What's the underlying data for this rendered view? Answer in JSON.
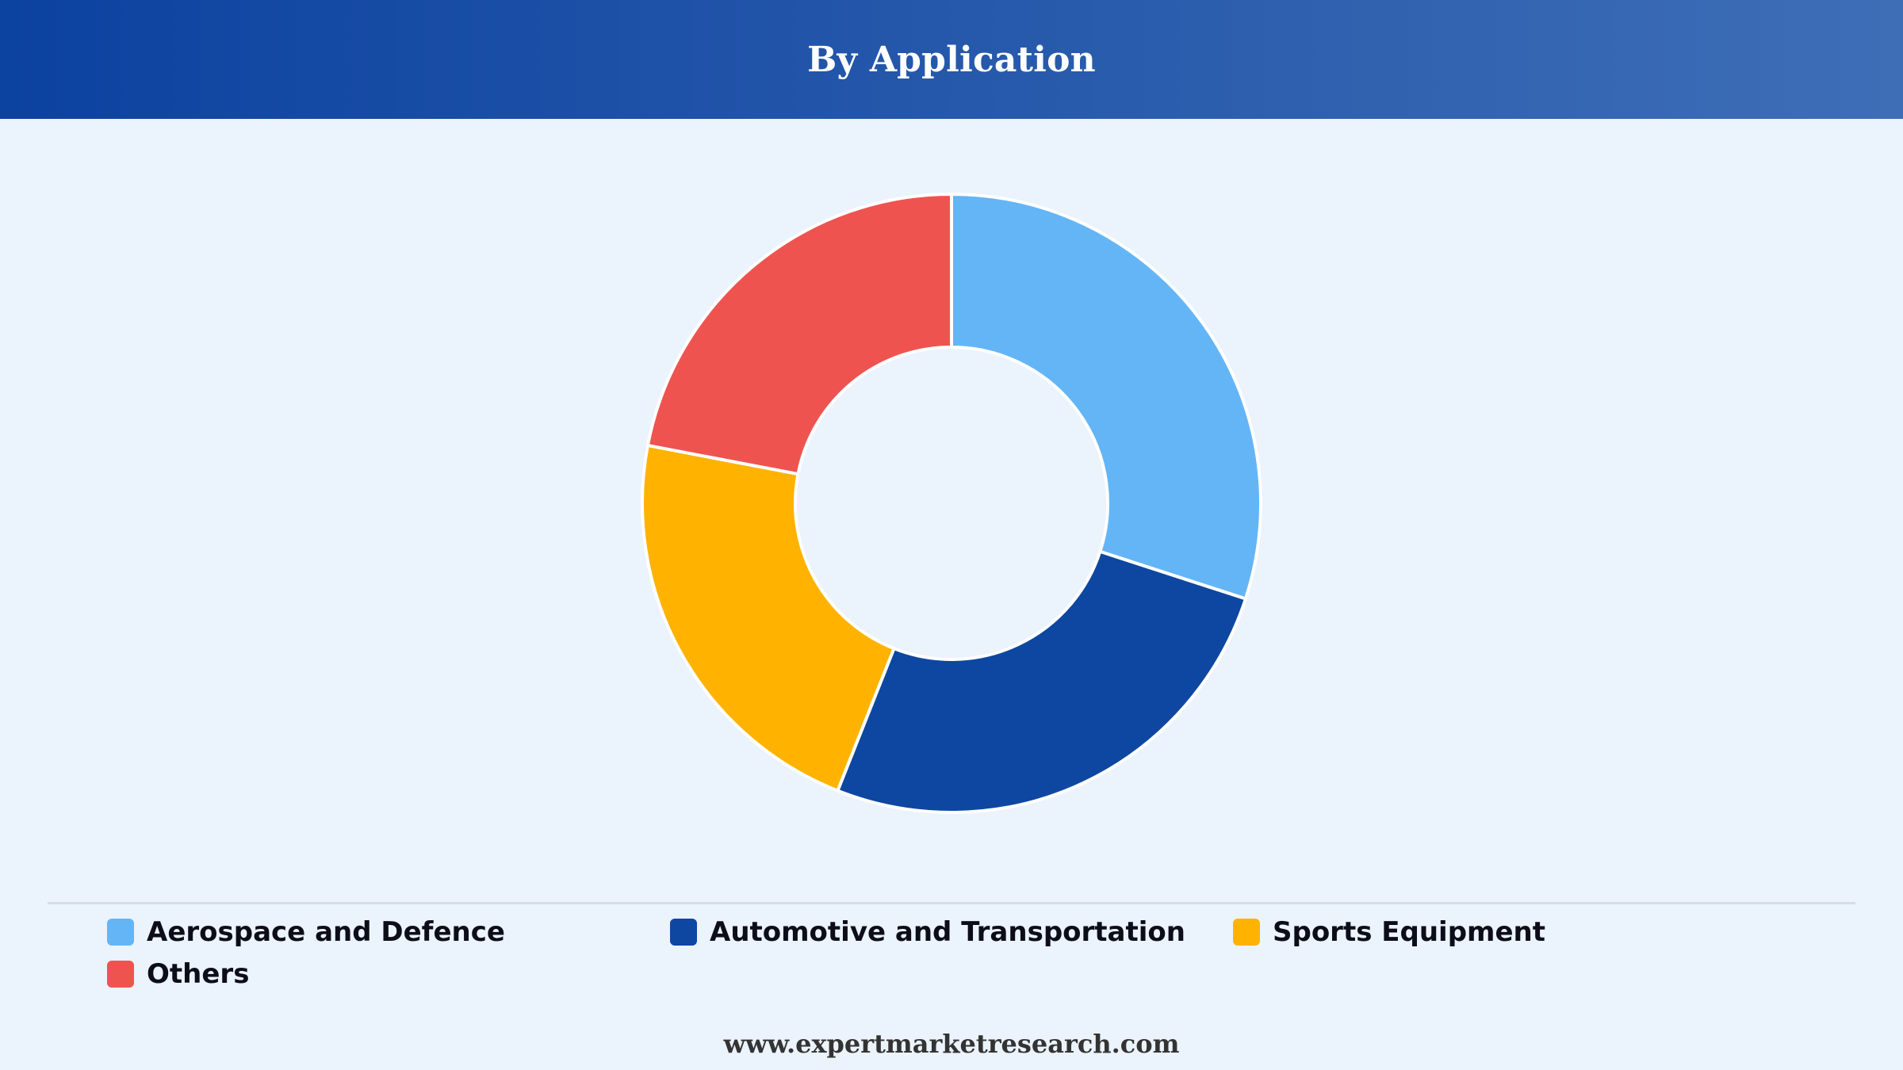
{
  "header": {
    "title": "By Application"
  },
  "chart_data": {
    "type": "pie",
    "variant": "donut",
    "title": "By Application",
    "categories": [
      "Aerospace and Defence",
      "Automotive and Transportation",
      "Sports Equipment",
      "Others"
    ],
    "values": [
      30,
      26,
      22,
      22
    ],
    "colors": [
      "#64b5f6",
      "#0d47a1",
      "#ffb300",
      "#ef5350"
    ],
    "legend_position": "bottom"
  },
  "legend": {
    "items": [
      {
        "label": "Aerospace and Defence",
        "color": "#64b5f6"
      },
      {
        "label": "Automotive and Transportation",
        "color": "#0d47a1"
      },
      {
        "label": "Sports Equipment",
        "color": "#ffb300"
      },
      {
        "label": "Others",
        "color": "#ef5350"
      }
    ]
  },
  "footer": {
    "source": "www.expertmarketresearch.com"
  }
}
